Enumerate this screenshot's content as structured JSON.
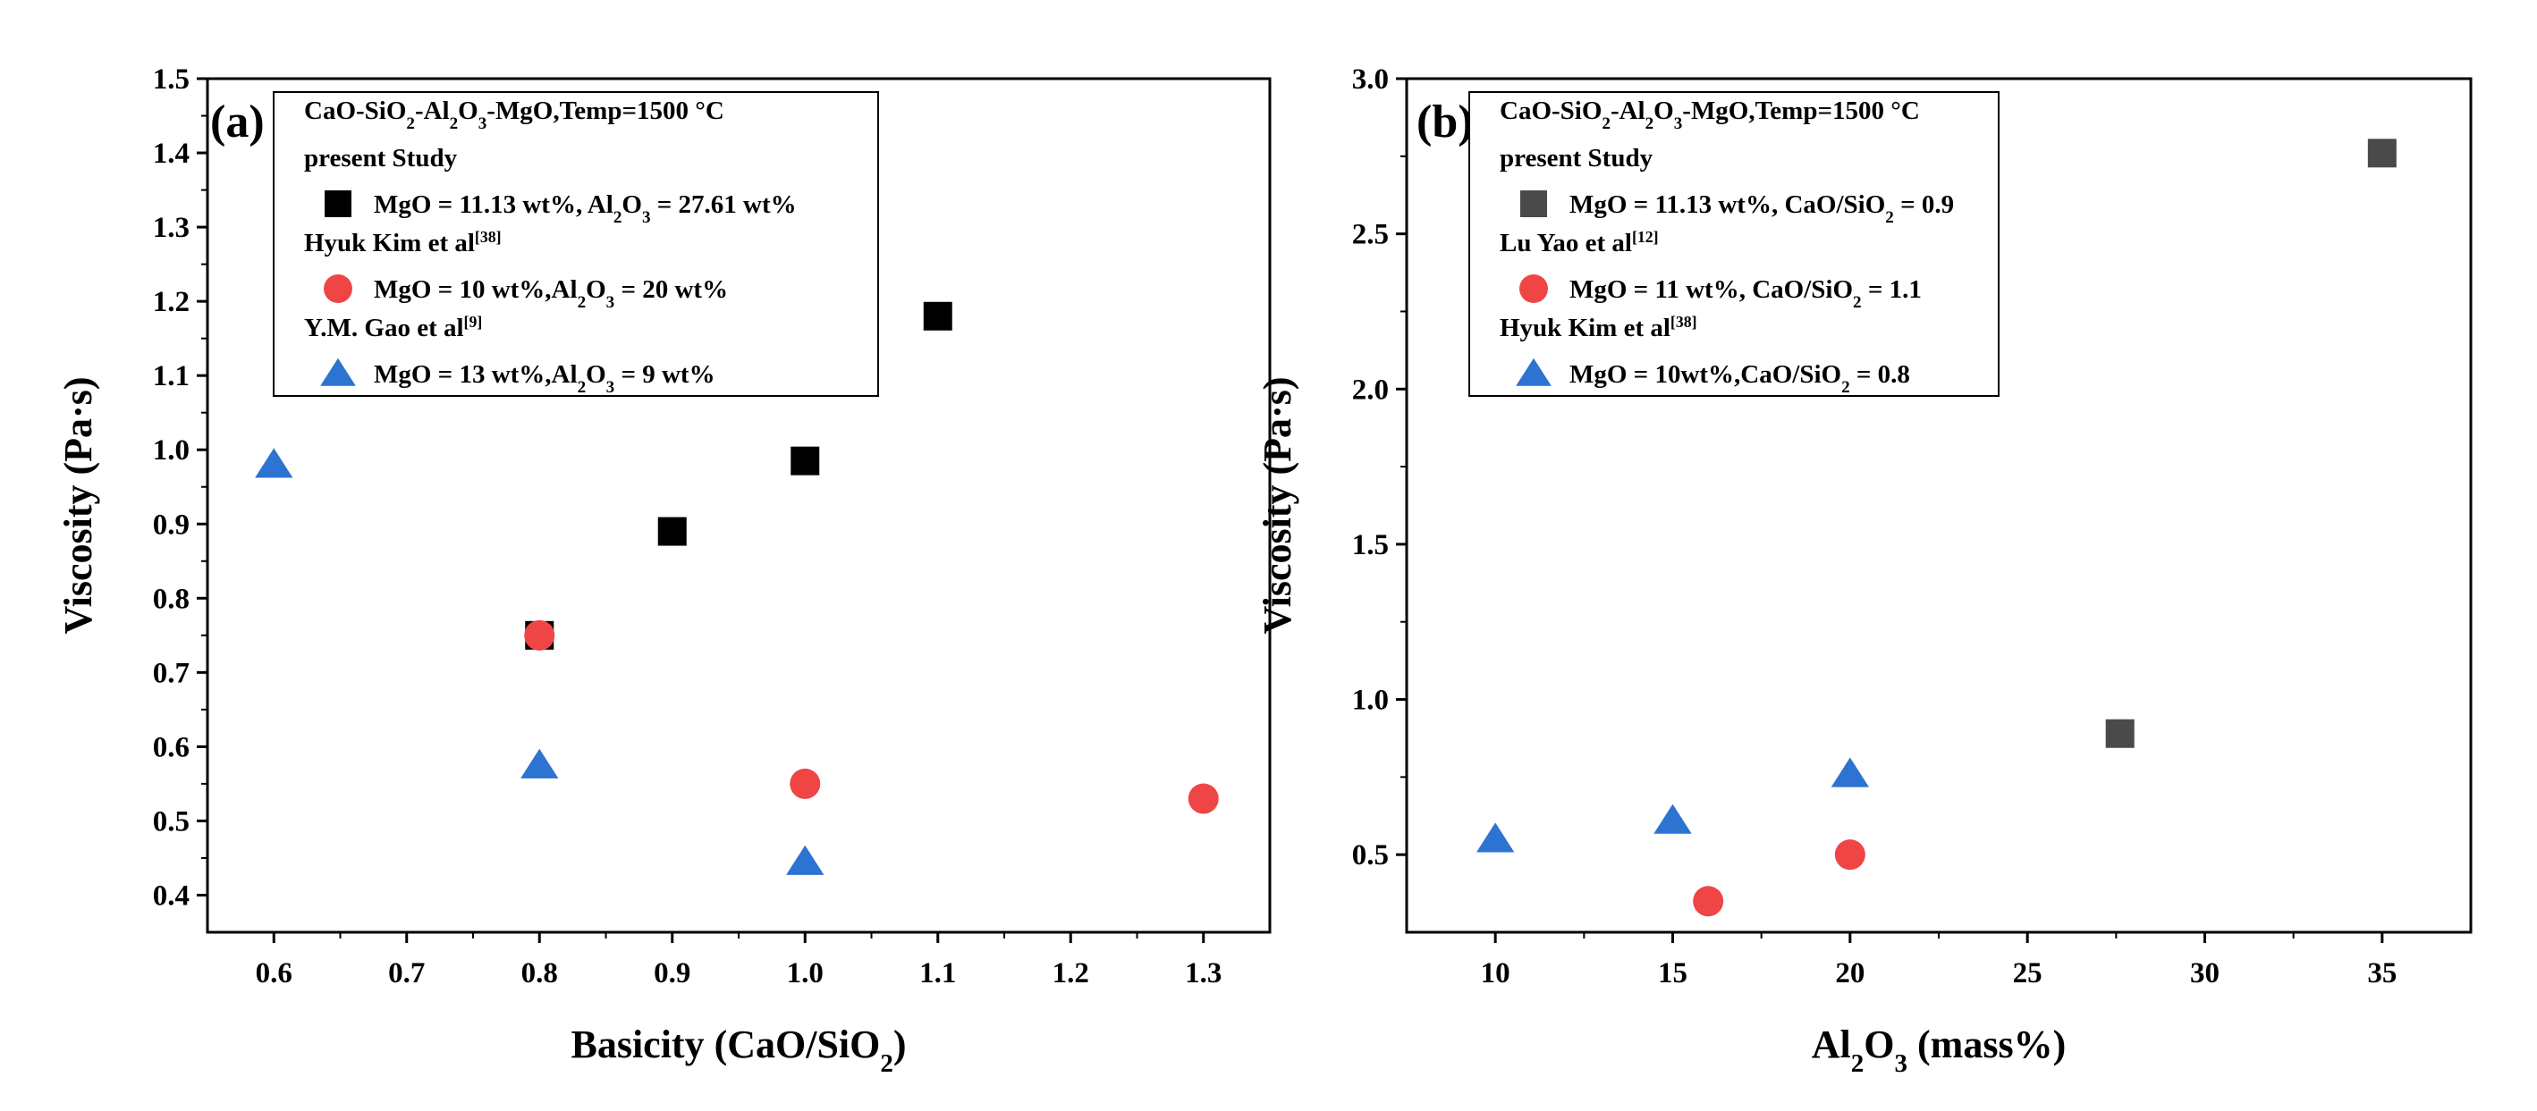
{
  "chart_data": [
    {
      "type": "scatter",
      "panel_label": "(a)",
      "xlabel": "Basicity (CaO/SiO2)",
      "ylabel": "Viscosity (Pa·s)",
      "xlim": [
        0.55,
        1.35
      ],
      "ylim": [
        0.35,
        1.5
      ],
      "xticks": [
        "0.6",
        "0.7",
        "0.8",
        "0.9",
        "1.0",
        "1.1",
        "1.2",
        "1.3"
      ],
      "yticks": [
        "0.4",
        "0.5",
        "0.6",
        "0.7",
        "0.8",
        "0.9",
        "1.0",
        "1.1",
        "1.2",
        "1.3",
        "1.4",
        "1.5"
      ],
      "legend_header": "CaO-SiO2-Al2O3-MgO,Temp=1500 °C",
      "legend_location": "top-center",
      "series": [
        {
          "group": "present Study",
          "name": "MgO = 11.13 wt%, Al2O3 = 27.61 wt%",
          "marker": "square",
          "color": "#000000",
          "x": [
            0.8,
            0.9,
            1.0,
            1.1
          ],
          "y": [
            0.75,
            0.89,
            0.985,
            1.18
          ]
        },
        {
          "group": "Hyuk Kim et al[38]",
          "name": "MgO = 10 wt%,Al2O3 = 20 wt%",
          "marker": "circle",
          "color": "#EF4545",
          "x": [
            0.8,
            1.0,
            1.3
          ],
          "y": [
            0.75,
            0.55,
            0.53
          ]
        },
        {
          "group": "Y.M. Gao et al[9]",
          "name": "MgO = 13 wt%,Al2O3 = 9 wt%",
          "marker": "triangle",
          "color": "#2C73D2",
          "x": [
            0.6,
            0.8,
            1.0
          ],
          "y": [
            0.98,
            0.575,
            0.445
          ]
        }
      ]
    },
    {
      "type": "scatter",
      "panel_label": "(b)",
      "xlabel": "Al2O3 (mass%)",
      "ylabel": "Viscosity (Pa·s)",
      "xlim": [
        7.5,
        37.5
      ],
      "ylim": [
        0.25,
        3.0
      ],
      "xticks": [
        "10",
        "15",
        "20",
        "25",
        "30",
        "35"
      ],
      "yticks": [
        "0.5",
        "1.0",
        "1.5",
        "2.0",
        "2.5",
        "3.0"
      ],
      "legend_header": "CaO-SiO2-Al2O3-MgO,Temp=1500 °C",
      "legend_location": "top-left",
      "series": [
        {
          "group": "present Study",
          "name": "MgO = 11.13 wt%, CaO/SiO2 = 0.9",
          "marker": "square",
          "color": "#4A4A4A",
          "x": [
            27.61,
            35
          ],
          "y": [
            0.89,
            2.76
          ]
        },
        {
          "group": "Lu Yao et al[12]",
          "name": "MgO = 11 wt%, CaO/SiO2 = 1.1",
          "marker": "circle",
          "color": "#EF4545",
          "x": [
            16,
            20
          ],
          "y": [
            0.35,
            0.5
          ]
        },
        {
          "group": "Hyuk Kim et al[38]",
          "name": "MgO = 10wt%,CaO/SiO2 = 0.8",
          "marker": "triangle",
          "color": "#2C73D2",
          "x": [
            10,
            15,
            20
          ],
          "y": [
            0.55,
            0.61,
            0.76
          ]
        }
      ]
    }
  ]
}
